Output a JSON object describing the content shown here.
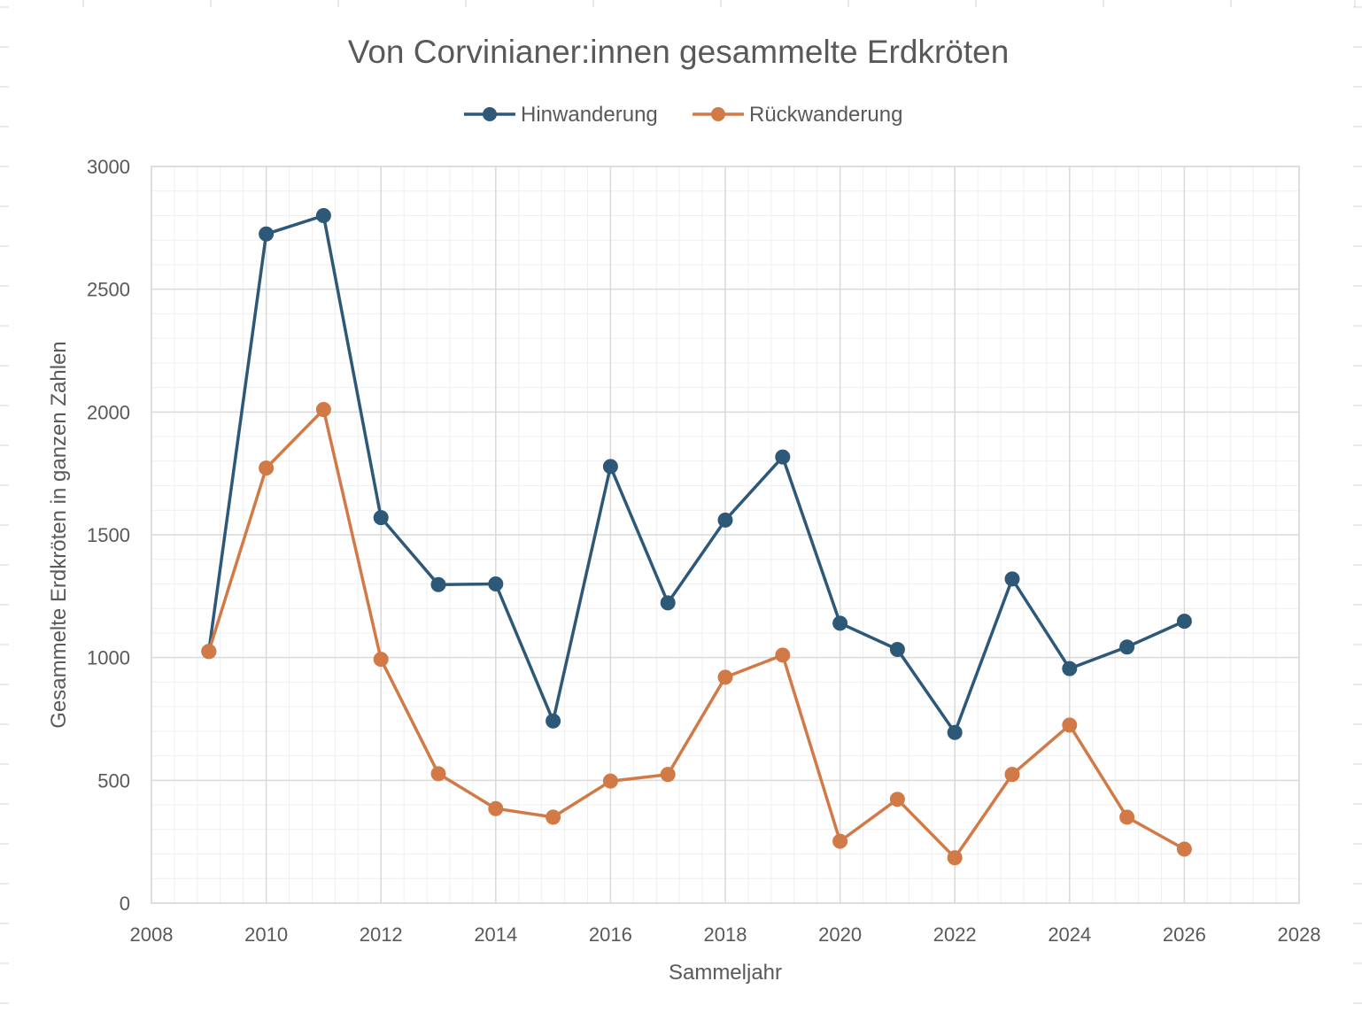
{
  "chart_data": {
    "type": "scatter",
    "title": "Von Corvinianer:innen gesammelte Erdkröten",
    "xlabel": "Sammeljahr",
    "ylabel": "Gesammelte Erdkröten in ganzen Zahlen",
    "xlim": [
      2008,
      2028
    ],
    "ylim": [
      0,
      3000
    ],
    "x_ticks": [
      "2008",
      "2010",
      "2012",
      "2014",
      "2016",
      "2018",
      "2020",
      "2022",
      "2024",
      "2026",
      "2028"
    ],
    "y_ticks": [
      "0",
      "500",
      "1000",
      "1500",
      "2000",
      "2500",
      "3000"
    ],
    "grid": "major and minor",
    "legend_position": "top",
    "x": [
      2009,
      2010,
      2011,
      2012,
      2013,
      2014,
      2015,
      2016,
      2017,
      2018,
      2019,
      2020,
      2021,
      2022,
      2023,
      2024,
      2025,
      2026
    ],
    "series": [
      {
        "name": "Hinwanderung",
        "color": "#2e5878",
        "values": [
          1025,
          2725,
          2800,
          1570,
          1297,
          1300,
          742,
          1778,
          1223,
          1560,
          1817,
          1140,
          1033,
          695,
          1320,
          955,
          1043,
          1148
        ]
      },
      {
        "name": "Rückwanderung",
        "color": "#d27a47",
        "values": [
          1025,
          1772,
          2010,
          993,
          527,
          385,
          350,
          497,
          524,
          920,
          1010,
          252,
          423,
          185,
          524,
          725,
          350,
          220
        ]
      }
    ]
  }
}
